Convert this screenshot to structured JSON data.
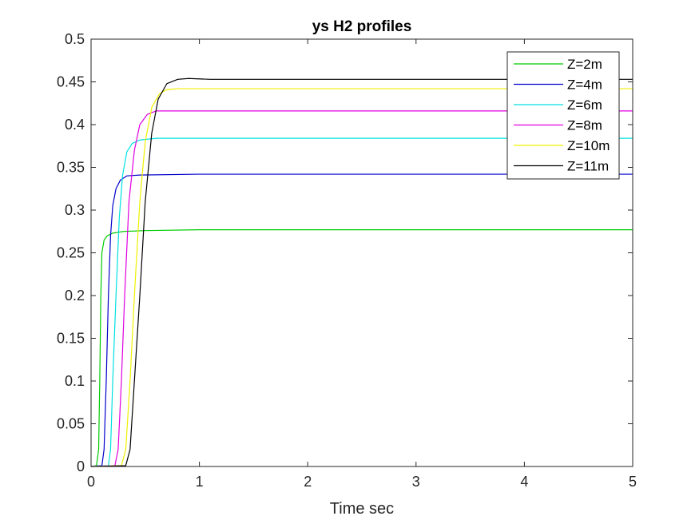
{
  "chart_data": {
    "type": "line",
    "title": "ys H2 profiles",
    "xlabel": "Time sec",
    "ylabel": "",
    "xlim": [
      0,
      5
    ],
    "ylim": [
      0,
      0.5
    ],
    "xticks": [
      0,
      1,
      2,
      3,
      4,
      5
    ],
    "xtick_labels": [
      "0",
      "1",
      "2",
      "3",
      "4",
      "5"
    ],
    "yticks": [
      0,
      0.05,
      0.1,
      0.15,
      0.2,
      0.25,
      0.3,
      0.35,
      0.4,
      0.45,
      0.5
    ],
    "ytick_labels": [
      "0",
      "0.05",
      "0.1",
      "0.15",
      "0.2",
      "0.25",
      "0.3",
      "0.35",
      "0.4",
      "0.45",
      "0.5"
    ],
    "grid": false,
    "legend_position": "top-right",
    "series": [
      {
        "name": "Z=2m",
        "color": "#00cc00",
        "points": [
          [
            0,
            0
          ],
          [
            0.05,
            0.001
          ],
          [
            0.07,
            0.02
          ],
          [
            0.08,
            0.1
          ],
          [
            0.09,
            0.2
          ],
          [
            0.1,
            0.25
          ],
          [
            0.12,
            0.265
          ],
          [
            0.15,
            0.27
          ],
          [
            0.2,
            0.273
          ],
          [
            0.3,
            0.275
          ],
          [
            0.5,
            0.276
          ],
          [
            1.0,
            0.277
          ],
          [
            5.0,
            0.277
          ]
        ]
      },
      {
        "name": "Z=4m",
        "color": "#0000cc",
        "points": [
          [
            0,
            0
          ],
          [
            0.1,
            0.001
          ],
          [
            0.12,
            0.02
          ],
          [
            0.14,
            0.1
          ],
          [
            0.16,
            0.2
          ],
          [
            0.18,
            0.27
          ],
          [
            0.2,
            0.305
          ],
          [
            0.23,
            0.325
          ],
          [
            0.27,
            0.335
          ],
          [
            0.33,
            0.34
          ],
          [
            0.45,
            0.341
          ],
          [
            1.0,
            0.342
          ],
          [
            5.0,
            0.342
          ]
        ]
      },
      {
        "name": "Z=6m",
        "color": "#00e0e0",
        "points": [
          [
            0,
            0
          ],
          [
            0.16,
            0.001
          ],
          [
            0.18,
            0.02
          ],
          [
            0.2,
            0.1
          ],
          [
            0.23,
            0.2
          ],
          [
            0.26,
            0.29
          ],
          [
            0.29,
            0.34
          ],
          [
            0.33,
            0.368
          ],
          [
            0.38,
            0.378
          ],
          [
            0.45,
            0.382
          ],
          [
            0.6,
            0.384
          ],
          [
            1.0,
            0.384
          ],
          [
            5.0,
            0.384
          ]
        ]
      },
      {
        "name": "Z=8m",
        "color": "#e000e0",
        "points": [
          [
            0,
            0
          ],
          [
            0.22,
            0.001
          ],
          [
            0.25,
            0.02
          ],
          [
            0.28,
            0.1
          ],
          [
            0.31,
            0.2
          ],
          [
            0.35,
            0.31
          ],
          [
            0.4,
            0.37
          ],
          [
            0.45,
            0.4
          ],
          [
            0.52,
            0.412
          ],
          [
            0.6,
            0.416
          ],
          [
            0.7,
            0.416
          ],
          [
            1.0,
            0.416
          ],
          [
            5.0,
            0.416
          ]
        ]
      },
      {
        "name": "Z=10m",
        "color": "#f0f000",
        "points": [
          [
            0,
            0
          ],
          [
            0.28,
            0.001
          ],
          [
            0.32,
            0.02
          ],
          [
            0.36,
            0.1
          ],
          [
            0.4,
            0.2
          ],
          [
            0.45,
            0.31
          ],
          [
            0.5,
            0.38
          ],
          [
            0.56,
            0.42
          ],
          [
            0.63,
            0.436
          ],
          [
            0.7,
            0.441
          ],
          [
            0.8,
            0.442
          ],
          [
            1.0,
            0.442
          ],
          [
            5.0,
            0.442
          ]
        ]
      },
      {
        "name": "Z=11m",
        "color": "#000000",
        "points": [
          [
            0,
            0
          ],
          [
            0.32,
            0.001
          ],
          [
            0.36,
            0.02
          ],
          [
            0.4,
            0.1
          ],
          [
            0.45,
            0.2
          ],
          [
            0.5,
            0.31
          ],
          [
            0.56,
            0.39
          ],
          [
            0.62,
            0.43
          ],
          [
            0.7,
            0.448
          ],
          [
            0.8,
            0.453
          ],
          [
            0.9,
            0.454
          ],
          [
            1.1,
            0.453
          ],
          [
            5.0,
            0.453
          ]
        ]
      }
    ]
  }
}
